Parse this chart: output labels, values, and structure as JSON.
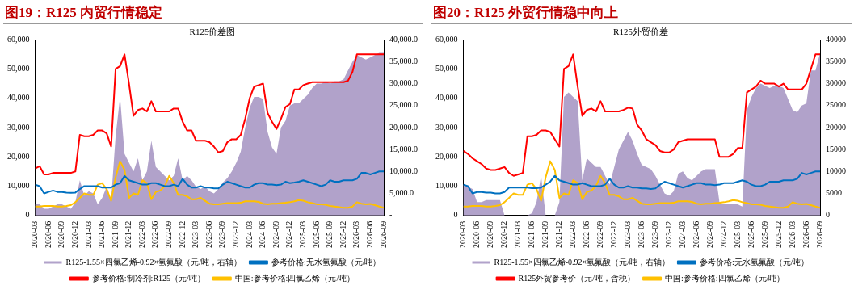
{
  "chart_data": [
    {
      "type": "line",
      "title": "图19：R125 内贸行情稳定",
      "subtitle": "R125价差图",
      "legend": "bottom",
      "x": [
        "2020-03",
        "2020-04",
        "2020-05",
        "2020-06",
        "2020-07",
        "2020-08",
        "2020-09",
        "2020-10",
        "2020-11",
        "2020-12",
        "2021-01",
        "2021-02",
        "2021-03",
        "2021-04",
        "2021-05",
        "2021-06",
        "2021-07",
        "2021-08",
        "2021-09",
        "2021-10",
        "2021-11",
        "2021-12",
        "2022-01",
        "2022-02",
        "2022-03",
        "2022-04",
        "2022-05",
        "2022-06",
        "2022-07",
        "2022-08",
        "2022-09",
        "2022-10",
        "2022-11",
        "2022-12",
        "2023-01",
        "2023-02",
        "2023-03",
        "2023-04",
        "2023-05",
        "2023-06",
        "2023-07",
        "2023-08",
        "2023-09",
        "2023-10",
        "2023-11",
        "2023-12",
        "2024-01",
        "2024-02",
        "2024-03",
        "2024-04",
        "2024-05",
        "2024-06",
        "2024-07",
        "2024-08",
        "2024-09",
        "2024-10",
        "2024-11",
        "2024-12",
        "2025-01",
        "2025-02",
        "2025-03",
        "2025-04",
        "2025-05",
        "2025-06",
        "2025-07",
        "2025-08",
        "2025-09",
        "2025-10",
        "2025-11",
        "2025-12",
        "2026-01",
        "2026-02",
        "2026-03",
        "2026-04",
        "2026-05",
        "2026-06",
        "2026-07",
        "2026-08",
        "2026-09"
      ],
      "xlim": [
        "2020-03",
        "2026-09"
      ],
      "xticks": [
        "2020-03",
        "2020-06",
        "2020-09",
        "2020-12",
        "2021-03",
        "2021-06",
        "2021-09",
        "2021-12",
        "2022-03",
        "2022-06",
        "2022-09",
        "2022-12",
        "2023-03",
        "2023-06",
        "2023-09",
        "2023-12",
        "2024-03",
        "2024-06",
        "2024-09",
        "2024-12",
        "2025-03",
        "2025-06",
        "2025-09",
        "2025-12",
        "2026-03",
        "2026-06",
        "2026-09"
      ],
      "ylim": [
        0,
        60000
      ],
      "yticks": [
        {
          "value": 0,
          "label": "0"
        },
        {
          "value": 10000,
          "label": "10,000"
        },
        {
          "value": 20000,
          "label": "20,000"
        },
        {
          "value": 30000,
          "label": "30,000"
        },
        {
          "value": 40000,
          "label": "40,000"
        },
        {
          "value": 50000,
          "label": "50,000"
        },
        {
          "value": 60000,
          "label": "60,000"
        }
      ],
      "y2lim": [
        0,
        40000
      ],
      "y2ticks": [
        {
          "value": 0,
          "label": "-"
        },
        {
          "value": 5000,
          "label": "5,000.0"
        },
        {
          "value": 10000,
          "label": "10,000.0"
        },
        {
          "value": 15000,
          "label": "15,000.0"
        },
        {
          "value": 20000,
          "label": "20,000.0"
        },
        {
          "value": 25000,
          "label": "25,000.0"
        },
        {
          "value": 30000,
          "label": "30,000.0"
        },
        {
          "value": 35000,
          "label": "35,000.0"
        },
        {
          "value": 40000,
          "label": "40,000.0"
        }
      ],
      "series": [
        {
          "name": "R125-1.55×四氯乙烯-0.92×氢氟酸（元/吨，右轴）",
          "type": "area",
          "axis": "y2",
          "color": "#b1a2ca",
          "values": [
            2500,
            2500,
            1500,
            1500,
            2000,
            2500,
            2500,
            2000,
            1500,
            3000,
            8000,
            4500,
            5500,
            5000,
            2500,
            4000,
            6500,
            3500,
            18000,
            27000,
            14000,
            12000,
            10000,
            13000,
            8000,
            10000,
            17000,
            11000,
            10000,
            9000,
            8000,
            9000,
            13000,
            8000,
            9000,
            8000,
            6500,
            6000,
            6500,
            5500,
            5000,
            6000,
            7500,
            8500,
            10000,
            12000,
            14500,
            20000,
            24500,
            27000,
            27000,
            26500,
            19000,
            15500,
            14000,
            20000,
            21500,
            25000,
            25500,
            25500,
            26500,
            27500,
            29000,
            30000,
            30000,
            30500,
            30000,
            30500,
            30500,
            31000,
            33000,
            35000,
            36500,
            36000,
            35500,
            36000,
            36500,
            37000,
            37000
          ]
        },
        {
          "name": "参考价格:无水氢氟酸（元/吨）",
          "type": "line",
          "color": "#0070c0",
          "values": [
            10500,
            10000,
            7500,
            8000,
            8500,
            8000,
            8000,
            7800,
            7700,
            7800,
            9000,
            10000,
            10000,
            10000,
            10000,
            9500,
            9500,
            9500,
            10500,
            11000,
            13500,
            12000,
            11500,
            11000,
            10500,
            10500,
            11000,
            11000,
            10500,
            10000,
            10000,
            10500,
            10000,
            12500,
            10500,
            9500,
            9500,
            10000,
            9500,
            9500,
            9200,
            9200,
            10500,
            11500,
            11000,
            10500,
            10000,
            9500,
            9500,
            10500,
            11000,
            11000,
            10500,
            10500,
            10300,
            10500,
            11500,
            11000,
            11200,
            11500,
            12000,
            11500,
            11000,
            10500,
            10000,
            10500,
            12000,
            11500,
            11500,
            12000,
            12000,
            12000,
            12500,
            14500,
            14500,
            14000,
            14500,
            15000,
            15000
          ]
        },
        {
          "name": "参考价格:制冷剂:R125（元/吨）",
          "type": "line",
          "color": "#ff0000",
          "values": [
            16000,
            16800,
            14000,
            14000,
            14500,
            14500,
            14500,
            14500,
            14500,
            15000,
            27500,
            27000,
            27000,
            27500,
            29000,
            29000,
            28000,
            23500,
            50000,
            51000,
            55000,
            45000,
            34000,
            36000,
            36500,
            35500,
            39000,
            35500,
            35500,
            35500,
            35500,
            36500,
            36500,
            32000,
            29000,
            29000,
            25500,
            25500,
            25500,
            25000,
            23500,
            21500,
            22000,
            25000,
            26000,
            26000,
            27500,
            33000,
            40000,
            44000,
            44500,
            45000,
            35000,
            32000,
            29500,
            33000,
            37000,
            38000,
            43000,
            43000,
            44500,
            45000,
            45500,
            45500,
            45500,
            45500,
            45500,
            45500,
            45500,
            45500,
            46000,
            49000,
            55000,
            55000,
            55000,
            55000,
            55000,
            55000,
            55000
          ]
        },
        {
          "name": "中国:参考价格:四氯乙烯（元/吨）",
          "type": "line",
          "color": "#ffc000",
          "values": [
            3000,
            3000,
            3200,
            3200,
            3200,
            3000,
            3000,
            3200,
            3500,
            4500,
            6000,
            7500,
            7000,
            7000,
            10500,
            11000,
            9000,
            5000,
            13000,
            18500,
            15500,
            6000,
            7500,
            7000,
            12000,
            11000,
            5500,
            8000,
            8500,
            10000,
            13500,
            11000,
            7000,
            7000,
            6500,
            5500,
            5500,
            6000,
            5000,
            4000,
            3800,
            3800,
            4000,
            4200,
            4200,
            4200,
            4300,
            4800,
            4800,
            4800,
            4600,
            4000,
            3800,
            4000,
            4000,
            4200,
            4300,
            4500,
            4800,
            5200,
            5000,
            4500,
            4200,
            3800,
            3800,
            3600,
            3200,
            3000,
            2800,
            2600,
            2600,
            3000,
            4500,
            4000,
            3800,
            3900,
            3500,
            3000,
            2600
          ]
        }
      ]
    },
    {
      "type": "line",
      "title": "图20：R125 外贸行情稳中向上",
      "subtitle": "R125外贸价差",
      "legend": "bottom",
      "x": [
        "2020-03",
        "2020-04",
        "2020-05",
        "2020-06",
        "2020-07",
        "2020-08",
        "2020-09",
        "2020-10",
        "2020-11",
        "2020-12",
        "2021-01",
        "2021-02",
        "2021-03",
        "2021-04",
        "2021-05",
        "2021-06",
        "2021-07",
        "2021-08",
        "2021-09",
        "2021-10",
        "2021-11",
        "2021-12",
        "2022-01",
        "2022-02",
        "2022-03",
        "2022-04",
        "2022-05",
        "2022-06",
        "2022-07",
        "2022-08",
        "2022-09",
        "2022-10",
        "2022-11",
        "2022-12",
        "2023-01",
        "2023-02",
        "2023-03",
        "2023-04",
        "2023-05",
        "2023-06",
        "2023-07",
        "2023-08",
        "2023-09",
        "2023-10",
        "2023-11",
        "2023-12",
        "2024-01",
        "2024-02",
        "2024-03",
        "2024-04",
        "2024-05",
        "2024-06",
        "2024-07",
        "2024-08",
        "2024-09",
        "2024-10",
        "2024-11",
        "2024-12",
        "2025-01",
        "2025-02",
        "2025-03",
        "2025-04",
        "2025-05",
        "2025-06",
        "2025-07",
        "2025-08",
        "2025-09",
        "2025-10",
        "2025-11",
        "2025-12",
        "2026-01",
        "2026-02",
        "2026-03",
        "2026-04",
        "2026-05",
        "2026-06",
        "2026-07",
        "2026-08",
        "2026-09"
      ],
      "xlim": [
        "2020-03",
        "2026-09"
      ],
      "xticks": [
        "2020-03",
        "2020-06",
        "2020-09",
        "2020-12",
        "2021-03",
        "2021-06",
        "2021-09",
        "2021-12",
        "2022-03",
        "2022-06",
        "2022-09",
        "2022-12",
        "2023-03",
        "2023-06",
        "2023-09",
        "2023-12",
        "2024-03",
        "2024-06",
        "2024-09",
        "2024-12",
        "2025-03",
        "2025-06",
        "2025-09",
        "2025-12",
        "2026-03",
        "2026-06",
        "2026-09"
      ],
      "ylim": [
        0,
        60000
      ],
      "yticks": [
        {
          "value": 0,
          "label": "0"
        },
        {
          "value": 10000,
          "label": "10,000"
        },
        {
          "value": 20000,
          "label": "20,000"
        },
        {
          "value": 30000,
          "label": "30,000"
        },
        {
          "value": 40000,
          "label": "40,000"
        },
        {
          "value": 50000,
          "label": "50,000"
        },
        {
          "value": 60000,
          "label": "60,000"
        }
      ],
      "y2lim": [
        0,
        40000
      ],
      "y2ticks": [
        0,
        5000,
        10000,
        15000,
        20000,
        25000,
        30000,
        35000,
        40000
      ],
      "series": [
        {
          "name": "R125-1.55×四氯乙烯-0.92×氢氟酸（元/吨，右轴）",
          "type": "area",
          "axis": "y2",
          "color": "#b1a2ca",
          "values": [
            7000,
            6500,
            6000,
            3000,
            3000,
            3500,
            3500,
            3500,
            3500,
            0,
            0,
            0,
            0,
            0,
            0,
            500,
            3000,
            9000,
            0,
            0,
            0,
            3000,
            27000,
            28000,
            27000,
            26000,
            8000,
            13000,
            12000,
            11000,
            11000,
            9000,
            7000,
            11000,
            15000,
            17000,
            19000,
            17000,
            14000,
            11500,
            11000,
            10500,
            9000,
            7000,
            5000,
            4500,
            5500,
            9500,
            10000,
            8500,
            8000,
            9000,
            10000,
            10500,
            10500,
            10500,
            3000,
            2500,
            2500,
            2500,
            2500,
            2000,
            24000,
            27000,
            29000,
            30000,
            29500,
            29000,
            29500,
            29500,
            29000,
            26500,
            24000,
            23500,
            25000,
            25500,
            33000,
            33000,
            37000
          ]
        },
        {
          "name": "参考价格:无水氢氟酸（元/吨）",
          "type": "line",
          "color": "#0070c0",
          "values": [
            10500,
            10000,
            7500,
            8000,
            8000,
            7800,
            7800,
            7500,
            7500,
            8000,
            9500,
            9500,
            9500,
            9500,
            9500,
            9300,
            9300,
            9500,
            10500,
            11500,
            13500,
            12000,
            11500,
            11000,
            10500,
            10500,
            11000,
            10500,
            10000,
            10000,
            10000,
            10500,
            12500,
            10500,
            9500,
            9500,
            10000,
            9500,
            9500,
            9200,
            9200,
            9000,
            9200,
            10500,
            11500,
            11000,
            10500,
            10000,
            9500,
            10000,
            10500,
            11000,
            11000,
            10500,
            10500,
            10300,
            10500,
            11000,
            11000,
            11000,
            11500,
            12000,
            11500,
            10500,
            10000,
            10000,
            10500,
            11500,
            11500,
            11500,
            12000,
            12000,
            12000,
            12500,
            14500,
            14000,
            14500,
            15000,
            15000
          ]
        },
        {
          "name": "R125外贸参考价（元/吨，含税）",
          "type": "line",
          "color": "#ff0000",
          "values": [
            22000,
            21000,
            19500,
            18500,
            17500,
            16000,
            15500,
            15500,
            16000,
            16500,
            14500,
            13500,
            14000,
            14500,
            27000,
            27000,
            27500,
            29000,
            29000,
            28500,
            26000,
            23500,
            50000,
            51000,
            55000,
            44000,
            34000,
            36000,
            36500,
            35500,
            39000,
            35500,
            35500,
            35500,
            35500,
            36000,
            36800,
            36500,
            31000,
            29000,
            26000,
            25000,
            24000,
            22000,
            21500,
            21500,
            22500,
            25000,
            25500,
            26000,
            26000,
            26000,
            26000,
            26000,
            26000,
            26000,
            20000,
            20000,
            20000,
            21000,
            23000,
            23000,
            42000,
            43000,
            44000,
            46000,
            45000,
            45000,
            45000,
            44000,
            45000,
            43000,
            43000,
            43000,
            43000,
            45000,
            50000,
            55000,
            55000
          ]
        },
        {
          "name": "中国:参考价格:四氯乙烯（元/吨）",
          "type": "line",
          "color": "#ffc000",
          "values": [
            3000,
            3000,
            3200,
            3200,
            3200,
            3000,
            3000,
            3200,
            3500,
            4500,
            6000,
            7500,
            7000,
            7000,
            10500,
            11000,
            9000,
            5000,
            13000,
            18500,
            15500,
            6000,
            7500,
            7000,
            12000,
            11000,
            5500,
            8000,
            8500,
            10000,
            13500,
            11000,
            7000,
            7000,
            6500,
            5500,
            5500,
            6000,
            5000,
            4000,
            3800,
            3800,
            4000,
            4200,
            4200,
            4200,
            4300,
            4800,
            4800,
            4800,
            4600,
            4000,
            3800,
            4000,
            4000,
            4200,
            4300,
            4500,
            4800,
            5200,
            5000,
            4500,
            4200,
            3800,
            3800,
            3600,
            3200,
            3000,
            2800,
            2600,
            2600,
            3000,
            4500,
            4000,
            3800,
            3900,
            3500,
            3000,
            2600
          ]
        }
      ]
    }
  ]
}
